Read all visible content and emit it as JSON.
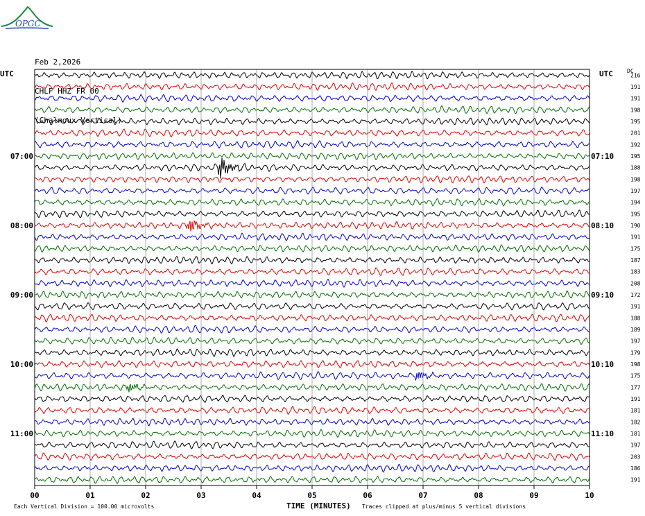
{
  "logo": {
    "text": "OPGC"
  },
  "header": {
    "date": "Feb 2,2026",
    "station": "CHLF HHZ FR 00",
    "location": "(Chalmoux Vertical)"
  },
  "left_axis_title": "UTC",
  "right_axis_title": "UTC",
  "dc_header": "DC",
  "footer": {
    "vertical_division": "Each Vertical Division =  100.00 microvolts",
    "xlabel": "TIME (MINUTES)",
    "clip_note": "Traces clipped at plus/minus 5 vertical divisions"
  },
  "colors": {
    "cycle": [
      "#000000",
      "#e00000",
      "#0000d0",
      "#007000"
    ]
  },
  "chart_data": {
    "type": "line",
    "subtype": "helicorder",
    "x_range": [
      0,
      10
    ],
    "x_ticks": [
      "00",
      "01",
      "02",
      "03",
      "04",
      "05",
      "06",
      "07",
      "08",
      "09",
      "10"
    ],
    "trace_count": 36,
    "left_time_labels": [
      {
        "trace": 7,
        "label": "07:00"
      },
      {
        "trace": 13,
        "label": "08:00"
      },
      {
        "trace": 19,
        "label": "09:00"
      },
      {
        "trace": 25,
        "label": "10:00"
      },
      {
        "trace": 31,
        "label": "11:00"
      }
    ],
    "right_time_labels": [
      {
        "trace": 7,
        "label": "07:10"
      },
      {
        "trace": 13,
        "label": "08:10"
      },
      {
        "trace": 19,
        "label": "09:10"
      },
      {
        "trace": 25,
        "label": "10:10"
      },
      {
        "trace": 31,
        "label": "11:10"
      }
    ],
    "dc_offsets": [
      "216",
      "191",
      "191",
      "198",
      "195",
      "201",
      "192",
      "195",
      "188",
      "198",
      "197",
      "194",
      "195",
      "190",
      "191",
      "175",
      "187",
      "183",
      "208",
      "172",
      "191",
      "188",
      "189",
      "197",
      "179",
      "198",
      "175",
      "177",
      "191",
      "181",
      "182",
      "181",
      "197",
      "203",
      "186",
      "191"
    ],
    "events": [
      {
        "trace": 8,
        "minute": 3.35,
        "amplitude": "large"
      },
      {
        "trace": 13,
        "minute": 2.8,
        "amplitude": "medium"
      },
      {
        "trace": 26,
        "minute": 6.9,
        "amplitude": "small"
      },
      {
        "trace": 27,
        "minute": 1.7,
        "amplitude": "small"
      }
    ],
    "grid": true,
    "legend": "none"
  }
}
